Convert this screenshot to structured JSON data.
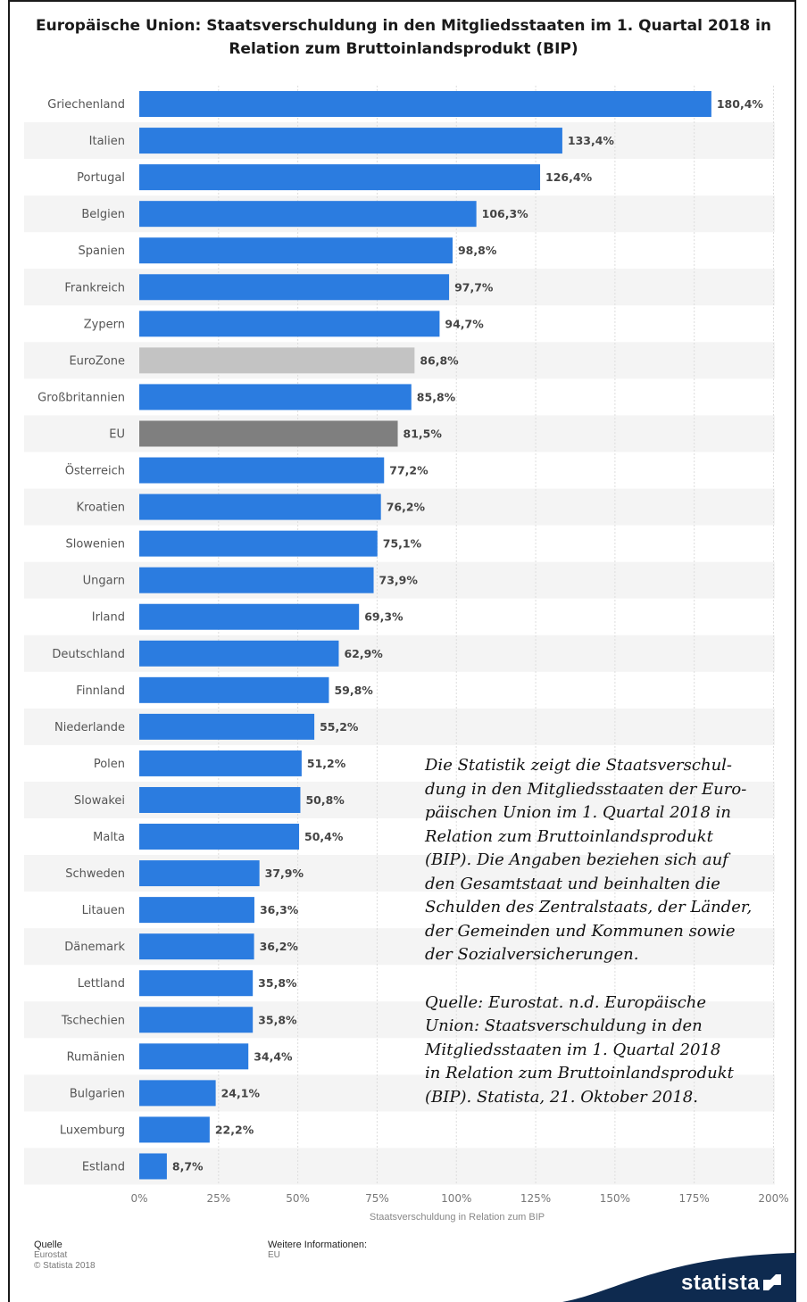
{
  "title": "Europäische Union: Staatsverschuldung in den Mitgliedsstaaten im 1. Quartal 2018 in Relation zum Bruttoinlandsprodukt (BIP)",
  "note": {
    "paragraph1": "Die Statistik zeigt die Staatsverschul-\ndung in den Mitgliedsstaaten der Euro-\npäischen Union im 1. Quartal 2018 in\nRelation zum Bruttoinlandsprodukt\n(BIP). Die Angaben beziehen sich auf\nden Gesamtstaat und beinhalten die\nSchulden des Zentralstaats, der Länder,\nder Gemeinden und Kommunen sowie\nder Sozialversicherungen.",
    "paragraph2": "Quelle: Eurostat. n.d. Europäische\nUnion: Staatsverschuldung in den\nMitgliedsstaaten im 1. Quartal 2018\nin Relation zum Bruttoinlandsprodukt\n(BIP). Statista, 21. Oktober 2018."
  },
  "footer": {
    "source_label": "Quelle",
    "source_value": "Eurostat",
    "copyright": "© Statista 2018",
    "info_label": "Weitere Informationen:",
    "info_value": "EU",
    "brand": "statista"
  },
  "colors": {
    "bar": "#2b7ce0",
    "eurozone": "#c3c3c3",
    "eu": "#7f7f7f",
    "stripe": "#f4f4f4"
  },
  "chart_data": {
    "type": "bar",
    "orientation": "horizontal",
    "categories": [
      "Griechenland",
      "Italien",
      "Portugal",
      "Belgien",
      "Spanien",
      "Frankreich",
      "Zypern",
      "EuroZone",
      "Großbritannien",
      "EU",
      "Österreich",
      "Kroatien",
      "Slowenien",
      "Ungarn",
      "Irland",
      "Deutschland",
      "Finnland",
      "Niederlande",
      "Polen",
      "Slowakei",
      "Malta",
      "Schweden",
      "Litauen",
      "Dänemark",
      "Lettland",
      "Tschechien",
      "Rumänien",
      "Bulgarien",
      "Luxemburg",
      "Estland"
    ],
    "values": [
      180.4,
      133.4,
      126.4,
      106.3,
      98.8,
      97.7,
      94.7,
      86.8,
      85.8,
      81.5,
      77.2,
      76.2,
      75.1,
      73.9,
      69.3,
      62.9,
      59.8,
      55.2,
      51.2,
      50.8,
      50.4,
      37.9,
      36.3,
      36.2,
      35.8,
      35.8,
      34.4,
      24.1,
      22.2,
      8.7
    ],
    "value_labels": [
      "180,4%",
      "133,4%",
      "126,4%",
      "106,3%",
      "98,8%",
      "97,7%",
      "94,7%",
      "86,8%",
      "85,8%",
      "81,5%",
      "77,2%",
      "76,2%",
      "75,1%",
      "73,9%",
      "69,3%",
      "62,9%",
      "59,8%",
      "55,2%",
      "51,2%",
      "50,8%",
      "50,4%",
      "37,9%",
      "36,3%",
      "36,2%",
      "35,8%",
      "35,8%",
      "34,4%",
      "24,1%",
      "22,2%",
      "8,7%"
    ],
    "highlight": {
      "EuroZone": "light-gray",
      "EU": "dark-gray"
    },
    "xlabel": "Staatsverschuldung in Relation zum BIP",
    "ylabel": "",
    "xlim": [
      0,
      200
    ],
    "xticks": [
      0,
      25,
      50,
      75,
      100,
      125,
      150,
      175,
      200
    ],
    "xtick_labels": [
      "0%",
      "25%",
      "50%",
      "75%",
      "100%",
      "125%",
      "150%",
      "175%",
      "200%"
    ],
    "grid": "vertical",
    "legend": "none"
  }
}
